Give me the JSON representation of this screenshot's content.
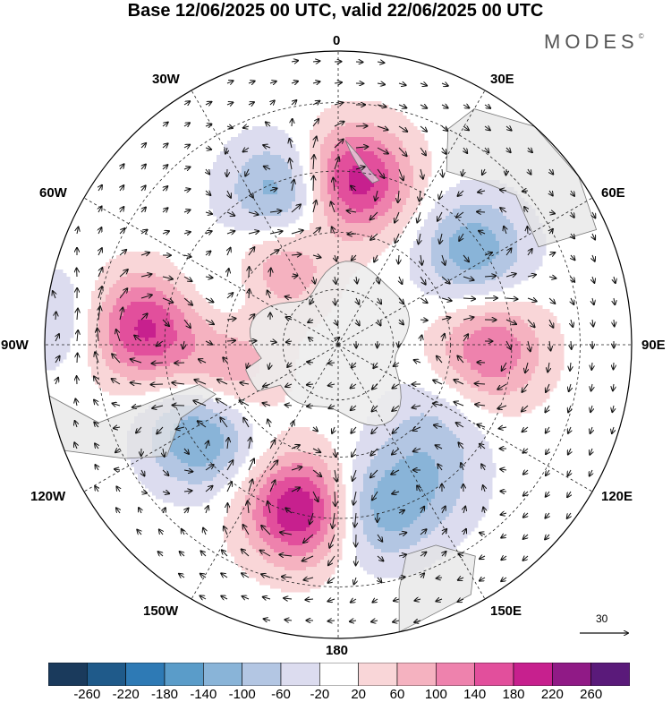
{
  "title": "Base 12/06/2025 00 UTC, valid 22/06/2025 00 UTC",
  "brand": "MODES",
  "brand_mark": "©",
  "longitude_labels": {
    "n0": "0",
    "e30": "30E",
    "e60": "60E",
    "e90": "90E",
    "e120": "120E",
    "e150": "150E",
    "s180": "180",
    "w150": "150W",
    "w120": "120W",
    "w90": "90W",
    "w60": "60W",
    "w30": "30W"
  },
  "reference_vector": {
    "label": "30",
    "magnitude": 30
  },
  "colorbar": {
    "ticks": [
      "-260",
      "-220",
      "-180",
      "-140",
      "-100",
      "-60",
      "-20",
      "20",
      "60",
      "100",
      "140",
      "180",
      "220",
      "260"
    ],
    "colors": [
      "#1a3a5c",
      "#1f5a8a",
      "#2e7ab5",
      "#5a9cc9",
      "#89b4d8",
      "#b3c6e3",
      "#dcdcef",
      "#ffffff",
      "#f9d6d8",
      "#f5b2c0",
      "#ee82ad",
      "#e24f9c",
      "#c7208e",
      "#901a86",
      "#5a1a7a"
    ]
  },
  "projection": "south-polar-stereographic",
  "field": {
    "anomalies": [
      {
        "name": "pos-30W",
        "lon": -13,
        "lat": -46,
        "amp": 230
      },
      {
        "name": "neg-60W",
        "lon": -57,
        "lat": -47,
        "amp": -150
      },
      {
        "name": "neg-10E",
        "lon": 12,
        "lat": -46,
        "amp": -120
      },
      {
        "name": "neg-30E",
        "lon": 33,
        "lat": -46,
        "amp": -60
      },
      {
        "name": "neg-45E",
        "lon": 48,
        "lat": -57,
        "amp": -60
      },
      {
        "name": "pos-90E",
        "lon": 88,
        "lat": -50,
        "amp": 140
      },
      {
        "name": "neg-120E",
        "lon": 125,
        "lat": -47,
        "amp": -130
      },
      {
        "name": "pos-170E",
        "lon": 174,
        "lat": -47,
        "amp": 210
      },
      {
        "name": "neg-150W",
        "lon": -159,
        "lat": -48,
        "amp": -140
      },
      {
        "name": "pos-150W",
        "lon": -142,
        "lat": -63,
        "amp": 120
      },
      {
        "name": "pos-95W",
        "lon": -95,
        "lat": -40,
        "amp": 190
      },
      {
        "name": "pos-70W",
        "lon": -77,
        "lat": -60,
        "amp": 100
      },
      {
        "name": "neg-120W",
        "lon": -118,
        "lat": -58,
        "amp": -60
      },
      {
        "name": "neg-95W-cap",
        "lon": -95,
        "lat": -22,
        "amp": -60
      }
    ]
  }
}
